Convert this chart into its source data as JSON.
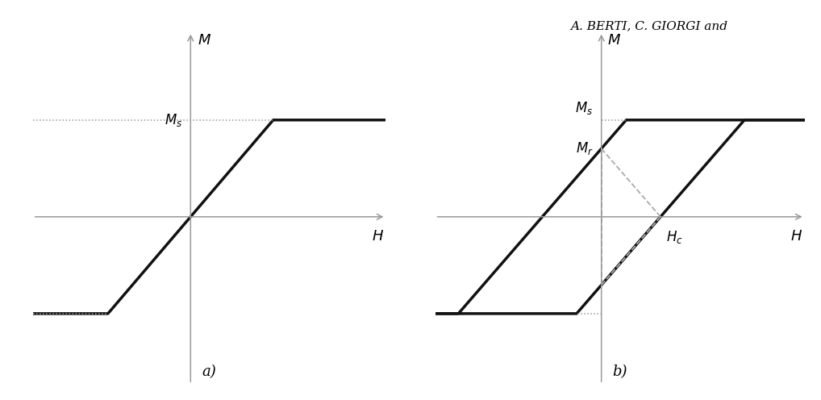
{
  "bg_color": "#ffffff",
  "header_text": "A. BERTI, C. GIORGI and",
  "label_a": "a)",
  "label_b": "b)",
  "fig_width": 10.18,
  "fig_height": 4.96,
  "plot_a": {
    "xlim": [
      -4.2,
      5.2
    ],
    "ylim": [
      -3.8,
      4.2
    ],
    "Ms": 2.2,
    "slope_start_x": -2.2,
    "slope_end_x": 2.2,
    "axis_color": "#999999",
    "curve_color": "#111111",
    "dot_color": "#999999",
    "lw": 2.5
  },
  "plot_b": {
    "xlim": [
      -4.5,
      5.5
    ],
    "ylim": [
      -3.8,
      4.2
    ],
    "Ms": 2.2,
    "Mr": 1.55,
    "Hc": 1.6,
    "upper_slope_x_start": -1.6,
    "upper_slope_x_end": 0.0,
    "lower_slope_x_start": 0.0,
    "lower_slope_x_end": 2.8,
    "axis_color": "#999999",
    "curve_color": "#111111",
    "dot_color": "#999999",
    "dash_color": "#aaaaaa",
    "lw": 2.5
  }
}
